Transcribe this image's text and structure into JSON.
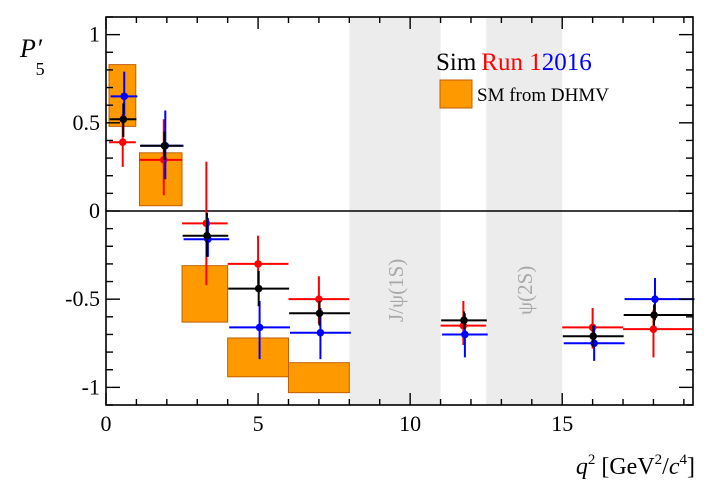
{
  "chart_data": {
    "type": "scatter",
    "ylabel_main": "P",
    "ylabel_prime": "′",
    "ylabel_sub": "5",
    "xlabel": {
      "q": "q",
      "q_sup": "2",
      "open": " [GeV",
      "gev_sup": "2",
      "slash": "/",
      "c": "c",
      "c_sup": "4",
      "close": "]"
    },
    "xlim": [
      0,
      19.3
    ],
    "ylim": [
      -1.1,
      1.1
    ],
    "x_ticks": [
      0,
      5,
      10,
      15
    ],
    "x_tick_labels": [
      "0",
      "5",
      "10",
      "15"
    ],
    "y_ticks": [
      1,
      0.5,
      0,
      -0.5,
      -1
    ],
    "y_tick_labels": [
      "1",
      "0.5",
      "0",
      "-0.5",
      "-1"
    ],
    "zero_line": true,
    "vetoed_regions": [
      {
        "label": "J/ψ(1S)",
        "x": [
          8.0,
          11.0
        ]
      },
      {
        "label": "ψ(2S)",
        "x": [
          12.5,
          15.0
        ]
      }
    ],
    "legend": {
      "title_parts": [
        {
          "text": "Sim",
          "color": "#000000"
        },
        {
          "text": "Run 1",
          "color": "#ff0000"
        },
        {
          "text": "2016",
          "color": "#0000ff"
        }
      ],
      "sm_label": "SM from DHMV",
      "placement": "top-right"
    },
    "sm_prediction": {
      "name": "SM from DHMV",
      "color": "#ff9900",
      "boxes": [
        {
          "x": [
            0.1,
            0.98
          ],
          "y": [
            0.48,
            0.83
          ]
        },
        {
          "x": [
            1.1,
            2.5
          ],
          "y": [
            0.03,
            0.33
          ]
        },
        {
          "x": [
            2.5,
            4.0
          ],
          "y": [
            -0.63,
            -0.31
          ]
        },
        {
          "x": [
            4.0,
            6.0
          ],
          "y": [
            -0.94,
            -0.72
          ]
        },
        {
          "x": [
            6.0,
            8.0
          ],
          "y": [
            -1.03,
            -0.86
          ]
        }
      ]
    },
    "series": [
      {
        "name": "Run 1",
        "color": "#ff0000",
        "points": [
          {
            "x": 0.55,
            "xerr": [
              0.45,
              0.43
            ],
            "y": 0.39,
            "yerr": [
              0.14,
              0.16
            ]
          },
          {
            "x": 1.9,
            "xerr": [
              0.8,
              0.6
            ],
            "y": 0.29,
            "yerr": [
              0.2,
              0.23
            ]
          },
          {
            "x": 3.3,
            "xerr": [
              0.8,
              0.7
            ],
            "y": -0.07,
            "yerr": [
              0.35,
              0.35
            ]
          },
          {
            "x": 5.0,
            "xerr": [
              1.0,
              1.0
            ],
            "y": -0.3,
            "yerr": [
              0.15,
              0.16
            ]
          },
          {
            "x": 7.0,
            "xerr": [
              1.0,
              1.0
            ],
            "y": -0.5,
            "yerr": [
              0.14,
              0.13
            ]
          },
          {
            "x": 11.75,
            "xerr": [
              0.75,
              0.75
            ],
            "y": -0.65,
            "yerr": [
              0.11,
              0.14
            ]
          },
          {
            "x": 16.0,
            "xerr": [
              1.0,
              1.0
            ],
            "y": -0.66,
            "yerr": [
              0.12,
              0.11
            ]
          },
          {
            "x": 18.0,
            "xerr": [
              1.0,
              1.3
            ],
            "y": -0.67,
            "yerr": [
              0.16,
              0.11
            ]
          }
        ]
      },
      {
        "name": "2016",
        "color": "#0000ff",
        "points": [
          {
            "x": 0.6,
            "xerr": [
              0.45,
              0.43
            ],
            "y": 0.65,
            "yerr": [
              0.14,
              0.14
            ]
          },
          {
            "x": 1.95,
            "xerr": [
              0.8,
              0.6
            ],
            "y": 0.37,
            "yerr": [
              0.19,
              0.2
            ]
          },
          {
            "x": 3.35,
            "xerr": [
              0.8,
              0.7
            ],
            "y": -0.16,
            "yerr": [
              0.1,
              0.12
            ]
          },
          {
            "x": 5.05,
            "xerr": [
              1.0,
              1.0
            ],
            "y": -0.66,
            "yerr": [
              0.18,
              0.15
            ]
          },
          {
            "x": 7.05,
            "xerr": [
              1.0,
              1.0
            ],
            "y": -0.69,
            "yerr": [
              0.15,
              0.14
            ]
          },
          {
            "x": 11.8,
            "xerr": [
              0.75,
              0.75
            ],
            "y": -0.7,
            "yerr": [
              0.13,
              0.12
            ]
          },
          {
            "x": 16.05,
            "xerr": [
              1.0,
              1.0
            ],
            "y": -0.75,
            "yerr": [
              0.1,
              0.1
            ]
          },
          {
            "x": 18.05,
            "xerr": [
              1.0,
              1.3
            ],
            "y": -0.5,
            "yerr": [
              0.12,
              0.12
            ]
          }
        ]
      },
      {
        "name": "Sim",
        "color": "#000000",
        "points": [
          {
            "x": 0.57,
            "xerr": [
              0.45,
              0.43
            ],
            "y": 0.52,
            "yerr": [
              0.1,
              0.09
            ]
          },
          {
            "x": 1.92,
            "xerr": [
              0.8,
              0.6
            ],
            "y": 0.37,
            "yerr": [
              0.08,
              0.08
            ]
          },
          {
            "x": 3.32,
            "xerr": [
              0.8,
              0.7
            ],
            "y": -0.14,
            "yerr": [
              0.12,
              0.13
            ]
          },
          {
            "x": 5.02,
            "xerr": [
              1.0,
              1.0
            ],
            "y": -0.44,
            "yerr": [
              0.1,
              0.1
            ]
          },
          {
            "x": 7.02,
            "xerr": [
              1.0,
              1.0
            ],
            "y": -0.58,
            "yerr": [
              0.07,
              0.07
            ]
          },
          {
            "x": 11.77,
            "xerr": [
              0.75,
              0.75
            ],
            "y": -0.62,
            "yerr": [
              0.05,
              0.05
            ]
          },
          {
            "x": 16.02,
            "xerr": [
              1.0,
              1.0
            ],
            "y": -0.71,
            "yerr": [
              0.06,
              0.06
            ]
          },
          {
            "x": 18.02,
            "xerr": [
              1.0,
              1.3
            ],
            "y": -0.59,
            "yerr": [
              0.06,
              0.06
            ]
          }
        ]
      }
    ]
  }
}
